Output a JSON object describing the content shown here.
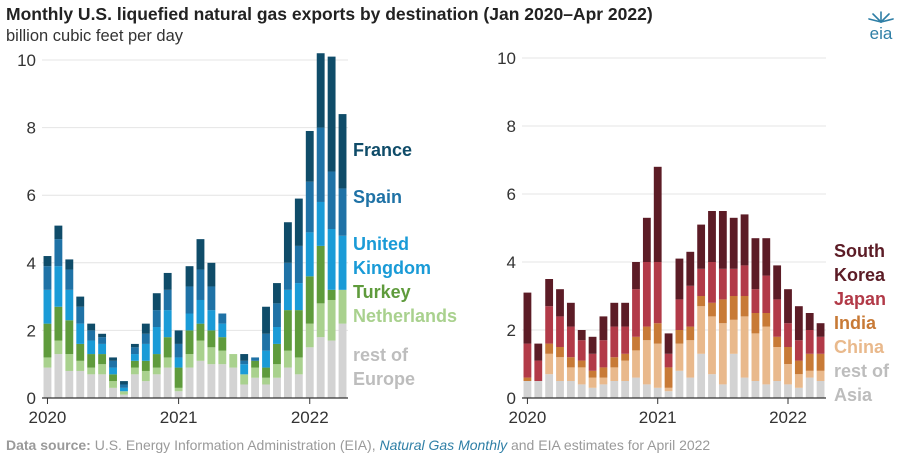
{
  "header": {
    "title": "Monthly U.S. liquefied natural gas exports by destination (Jan 2020–Apr 2022)",
    "subtitle": "billion cubic feet per day",
    "logo_text": "eia"
  },
  "footer": {
    "label": "Data source:",
    "text": "U.S. Energy Information Administration (EIA),",
    "publication": "Natural Gas Monthly",
    "text_end": "and EIA estimates for April 2022"
  },
  "chart_data": [
    {
      "type": "bar",
      "stacked": true,
      "xlabels": [
        "2020",
        "2021",
        "2022"
      ],
      "xlabel_month_index": [
        0,
        12,
        24
      ],
      "ylim": [
        0,
        10
      ],
      "yticks": [
        0,
        2,
        4,
        6,
        8,
        10
      ],
      "months": [
        "Jan 2020",
        "Feb 2020",
        "Mar 2020",
        "Apr 2020",
        "May 2020",
        "Jun 2020",
        "Jul 2020",
        "Aug 2020",
        "Sep 2020",
        "Oct 2020",
        "Nov 2020",
        "Dec 2020",
        "Jan 2021",
        "Feb 2021",
        "Mar 2021",
        "Apr 2021",
        "May 2021",
        "Jun 2021",
        "Jul 2021",
        "Aug 2021",
        "Sep 2021",
        "Oct 2021",
        "Nov 2021",
        "Dec 2021",
        "Jan 2022",
        "Feb 2022",
        "Mar 2022",
        "Apr 2022"
      ],
      "series": [
        {
          "name": "rest of Europe",
          "color": "#d3d3d3",
          "values": [
            0.9,
            1.3,
            0.8,
            0.8,
            0.7,
            0.7,
            0.3,
            0.1,
            0.7,
            0.5,
            0.7,
            0.9,
            0.2,
            0.9,
            1.1,
            1.0,
            1.0,
            0.9,
            0.4,
            0.6,
            0.4,
            0.6,
            0.9,
            0.7,
            1.5,
            1.8,
            1.7,
            2.2
          ]
        },
        {
          "name": "Netherlands",
          "color": "#a9d18e",
          "values": [
            0.3,
            0.4,
            0.5,
            0.3,
            0.2,
            0.3,
            0.2,
            0.1,
            0.2,
            0.3,
            0.2,
            0.3,
            0.1,
            0.4,
            0.6,
            0.5,
            0.4,
            0.4,
            0.3,
            0.3,
            0.2,
            0.4,
            0.5,
            0.5,
            0.7,
            1.0,
            1.2,
            1.0
          ]
        },
        {
          "name": "Turkey",
          "color": "#5f9b3c",
          "values": [
            1.0,
            1.0,
            1.0,
            0.5,
            0.4,
            0.3,
            0.2,
            0.0,
            0.2,
            0.3,
            0.4,
            0.6,
            0.6,
            0.7,
            0.5,
            0.5,
            0.4,
            0.0,
            0.0,
            0.2,
            0.3,
            0.6,
            1.2,
            1.4,
            1.4,
            1.7,
            0.3,
            0.0
          ]
        },
        {
          "name": "United Kingdom",
          "color": "#1a9bd7",
          "values": [
            1.0,
            1.2,
            0.9,
            0.6,
            0.4,
            0.3,
            0.2,
            0.1,
            0.2,
            0.5,
            0.8,
            0.8,
            0.3,
            0.5,
            0.7,
            0.6,
            0.4,
            0.0,
            0.3,
            0.0,
            0.5,
            0.5,
            0.6,
            0.8,
            1.3,
            1.3,
            1.8,
            1.6
          ]
        },
        {
          "name": "Spain",
          "color": "#1f72a6",
          "values": [
            0.7,
            0.8,
            0.6,
            0.5,
            0.3,
            0.2,
            0.2,
            0.1,
            0.2,
            0.3,
            0.5,
            0.6,
            0.4,
            0.8,
            0.9,
            0.7,
            0.3,
            0.0,
            0.1,
            0.1,
            0.5,
            0.7,
            0.8,
            1.1,
            1.5,
            2.2,
            1.7,
            1.4
          ]
        },
        {
          "name": "France",
          "color": "#0f4c69",
          "values": [
            0.3,
            0.4,
            0.3,
            0.3,
            0.2,
            0.1,
            0.1,
            0.1,
            0.1,
            0.3,
            0.5,
            0.5,
            0.4,
            0.6,
            0.9,
            0.7,
            0.0,
            0.0,
            0.2,
            0.0,
            0.8,
            0.6,
            1.2,
            1.4,
            1.5,
            2.2,
            3.4,
            2.2
          ]
        }
      ]
    },
    {
      "type": "bar",
      "stacked": true,
      "xlabels": [
        "2020",
        "2021",
        "2022"
      ],
      "xlabel_month_index": [
        0,
        12,
        24
      ],
      "ylim": [
        0,
        10
      ],
      "yticks": [
        0,
        2,
        4,
        6,
        8,
        10
      ],
      "months": [
        "Jan 2020",
        "Feb 2020",
        "Mar 2020",
        "Apr 2020",
        "May 2020",
        "Jun 2020",
        "Jul 2020",
        "Aug 2020",
        "Sep 2020",
        "Oct 2020",
        "Nov 2020",
        "Dec 2020",
        "Jan 2021",
        "Feb 2021",
        "Mar 2021",
        "Apr 2021",
        "May 2021",
        "Jun 2021",
        "Jul 2021",
        "Aug 2021",
        "Sep 2021",
        "Oct 2021",
        "Nov 2021",
        "Dec 2021",
        "Jan 2022",
        "Feb 2022",
        "Mar 2022",
        "Apr 2022"
      ],
      "series": [
        {
          "name": "rest of Asia",
          "color": "#d3d3d3",
          "values": [
            0.5,
            0.5,
            0.7,
            0.5,
            0.5,
            0.4,
            0.3,
            0.4,
            0.5,
            0.5,
            0.6,
            0.4,
            0.3,
            0.2,
            0.8,
            0.6,
            1.3,
            0.7,
            0.4,
            1.3,
            0.6,
            0.5,
            0.4,
            0.5,
            0.4,
            0.3,
            0.6,
            0.5
          ]
        },
        {
          "name": "China",
          "color": "#e9b98c",
          "values": [
            0.0,
            0.0,
            0.6,
            0.7,
            0.4,
            0.5,
            0.3,
            0.2,
            0.4,
            0.6,
            0.8,
            1.3,
            1.3,
            0.1,
            0.8,
            1.1,
            1.4,
            1.7,
            1.8,
            1.0,
            1.8,
            1.4,
            1.7,
            1.0,
            0.6,
            0.4,
            0.2,
            0.3
          ]
        },
        {
          "name": "India",
          "color": "#c87a36",
          "values": [
            0.1,
            0.0,
            0.3,
            0.3,
            0.3,
            0.2,
            0.2,
            0.3,
            0.3,
            0.2,
            0.4,
            0.4,
            0.6,
            0.6,
            0.4,
            0.4,
            0.3,
            0.4,
            0.7,
            0.7,
            0.6,
            0.6,
            0.4,
            0.3,
            0.5,
            0.4,
            0.5,
            0.5
          ]
        },
        {
          "name": "Japan",
          "color": "#b23a48",
          "values": [
            1.0,
            0.6,
            1.1,
            0.9,
            0.9,
            0.6,
            0.5,
            0.8,
            0.9,
            0.8,
            1.4,
            1.9,
            1.8,
            0.4,
            0.9,
            1.2,
            0.8,
            1.2,
            0.9,
            0.8,
            0.9,
            0.7,
            1.1,
            1.1,
            0.7,
            0.6,
            0.7,
            0.5
          ]
        },
        {
          "name": "South Korea",
          "color": "#5c1c26",
          "values": [
            1.5,
            0.5,
            0.8,
            0.8,
            0.7,
            0.3,
            0.5,
            0.7,
            0.7,
            0.7,
            0.8,
            1.3,
            2.8,
            0.6,
            1.2,
            1.0,
            1.3,
            1.5,
            1.7,
            1.5,
            1.5,
            1.5,
            1.1,
            1.0,
            1.0,
            1.0,
            0.5,
            0.4
          ]
        }
      ]
    }
  ]
}
